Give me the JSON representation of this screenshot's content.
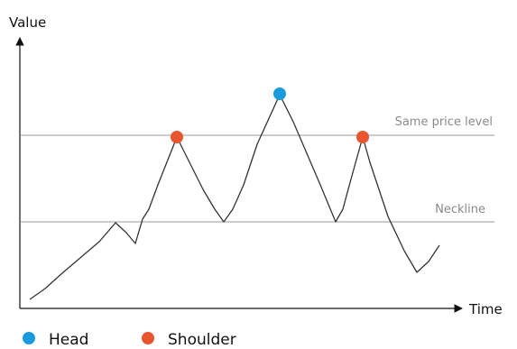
{
  "axes": {
    "y_label": "Value",
    "x_label": "Time"
  },
  "levels": {
    "upper": "Same price level",
    "lower": "Neckline"
  },
  "legend": {
    "items": [
      {
        "label": "Head",
        "color": "#1a9bdc"
      },
      {
        "label": "Shoulder",
        "color": "#e8552f"
      }
    ]
  }
}
